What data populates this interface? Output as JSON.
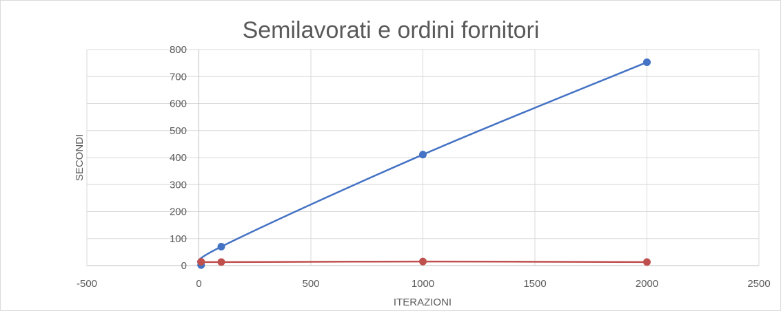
{
  "chart_data": {
    "type": "scatter",
    "title": "Semilavorati e ordini fornitori",
    "xlabel": "ITERAZIONI",
    "ylabel": "SECONDI",
    "xlim": [
      -500,
      2500
    ],
    "ylim": [
      0,
      800
    ],
    "x_ticks": [
      "-500",
      "0",
      "500",
      "1000",
      "1500",
      "2000",
      "2500"
    ],
    "y_ticks": [
      "0",
      "100",
      "200",
      "300",
      "400",
      "500",
      "600",
      "700",
      "800"
    ],
    "grid": true,
    "legend": "none",
    "series": [
      {
        "color": "#4472c4",
        "points": [
          {
            "x": 10,
            "y": 2
          },
          {
            "x": 100,
            "y": 70
          },
          {
            "x": 1000,
            "y": 411
          },
          {
            "x": 2000,
            "y": 753
          }
        ]
      },
      {
        "color": "#c0504d",
        "points": [
          {
            "x": 10,
            "y": 14
          },
          {
            "x": 100,
            "y": 13
          },
          {
            "x": 1000,
            "y": 15
          },
          {
            "x": 2000,
            "y": 13
          }
        ]
      }
    ]
  }
}
